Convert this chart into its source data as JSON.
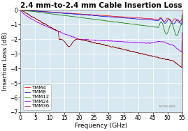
{
  "title": "2.4 mm-to-2.4 mm Cable Insertion Loss",
  "xlabel": "Frequency (GHz)",
  "ylabel": "Insertion Loss (dB)",
  "xlim": [
    0,
    55
  ],
  "ylim": [
    -7,
    0
  ],
  "xticks": [
    0,
    5,
    10,
    15,
    20,
    25,
    30,
    35,
    40,
    45,
    50,
    55
  ],
  "yticks": [
    0,
    -1,
    -2,
    -3,
    -4,
    -5,
    -6,
    -7
  ],
  "background_color": "#ffffff",
  "plot_bg": "#d8e8f0",
  "grid_color": "#ffffff",
  "series": [
    {
      "name": "TMM4",
      "color": "#ff0000"
    },
    {
      "name": "TMM8",
      "color": "#0000ff"
    },
    {
      "name": "TMM12",
      "color": "#008000"
    },
    {
      "name": "TMM24",
      "color": "#aa00ff"
    },
    {
      "name": "TMM36",
      "color": "#8b0000"
    }
  ],
  "watermark": "THORLABS",
  "title_fontsize": 7.5,
  "axis_fontsize": 6.5,
  "tick_fontsize": 5.5,
  "legend_fontsize": 5.0
}
